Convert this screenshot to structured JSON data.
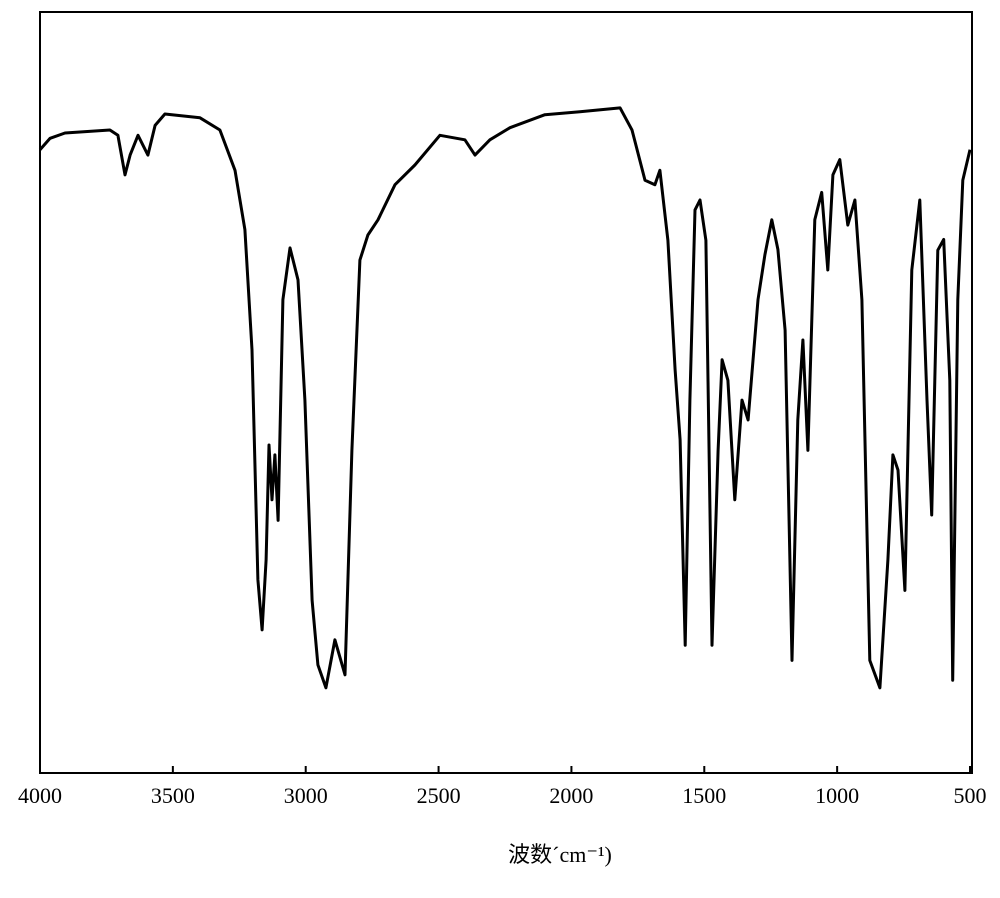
{
  "chart_data": {
    "type": "line",
    "x_label": "波数´cm⁻¹)",
    "xlim": [
      4000,
      500
    ],
    "ylim": [
      0,
      100
    ],
    "xticks": [
      4000,
      3500,
      3000,
      2500,
      2000,
      1500,
      1000,
      500
    ],
    "color": "#000000",
    "x": [
      4000,
      3962,
      3906,
      3737,
      3707,
      3680,
      3661,
      3631,
      3594,
      3567,
      3530,
      3398,
      3323,
      3266,
      3229,
      3202,
      3180,
      3164,
      3149,
      3138,
      3127,
      3116,
      3104,
      3086,
      3059,
      3029,
      3003,
      2976,
      2954,
      2924,
      2890,
      2852,
      2826,
      2796,
      2766,
      2728,
      2664,
      2589,
      2495,
      2401,
      2363,
      2307,
      2231,
      2100,
      1968,
      1817,
      1772,
      1723,
      1686,
      1667,
      1637,
      1610,
      1591,
      1572,
      1554,
      1535,
      1516,
      1494,
      1471,
      1448,
      1433,
      1411,
      1385,
      1358,
      1335,
      1298,
      1272,
      1246,
      1223,
      1196,
      1170,
      1148,
      1129,
      1110,
      1084,
      1058,
      1035,
      1016,
      990,
      960,
      933,
      907,
      877,
      839,
      809,
      790,
      771,
      745,
      719,
      689,
      662,
      644,
      621,
      599,
      576,
      565,
      546,
      527,
      500
    ],
    "values": [
      81.9,
      83.4,
      84.1,
      84.5,
      83.8,
      78.6,
      81.2,
      83.8,
      81.2,
      85.1,
      86.6,
      86.1,
      84.5,
      79.2,
      71.4,
      55.6,
      25.4,
      18.8,
      28.0,
      43.1,
      35.9,
      41.8,
      33.2,
      62.2,
      69.0,
      64.8,
      49.0,
      22.7,
      14.2,
      11.2,
      17.5,
      12.9,
      42.4,
      67.4,
      70.7,
      72.7,
      77.3,
      79.9,
      83.8,
      83.2,
      81.2,
      83.2,
      84.8,
      86.5,
      86.9,
      87.4,
      84.5,
      77.9,
      77.3,
      79.2,
      70.0,
      53.0,
      43.8,
      16.8,
      49.0,
      74.0,
      75.3,
      70.0,
      16.8,
      42.4,
      54.3,
      51.6,
      35.9,
      49.0,
      46.4,
      62.2,
      68.1,
      72.7,
      68.8,
      58.2,
      14.8,
      46.4,
      56.9,
      42.4,
      72.7,
      76.3,
      66.1,
      78.6,
      80.6,
      72.0,
      75.3,
      62.2,
      14.8,
      11.2,
      28.0,
      41.8,
      39.8,
      24.0,
      66.1,
      75.3,
      49.0,
      33.9,
      68.7,
      70.1,
      51.6,
      12.2,
      62.2,
      77.9,
      81.9
    ]
  }
}
